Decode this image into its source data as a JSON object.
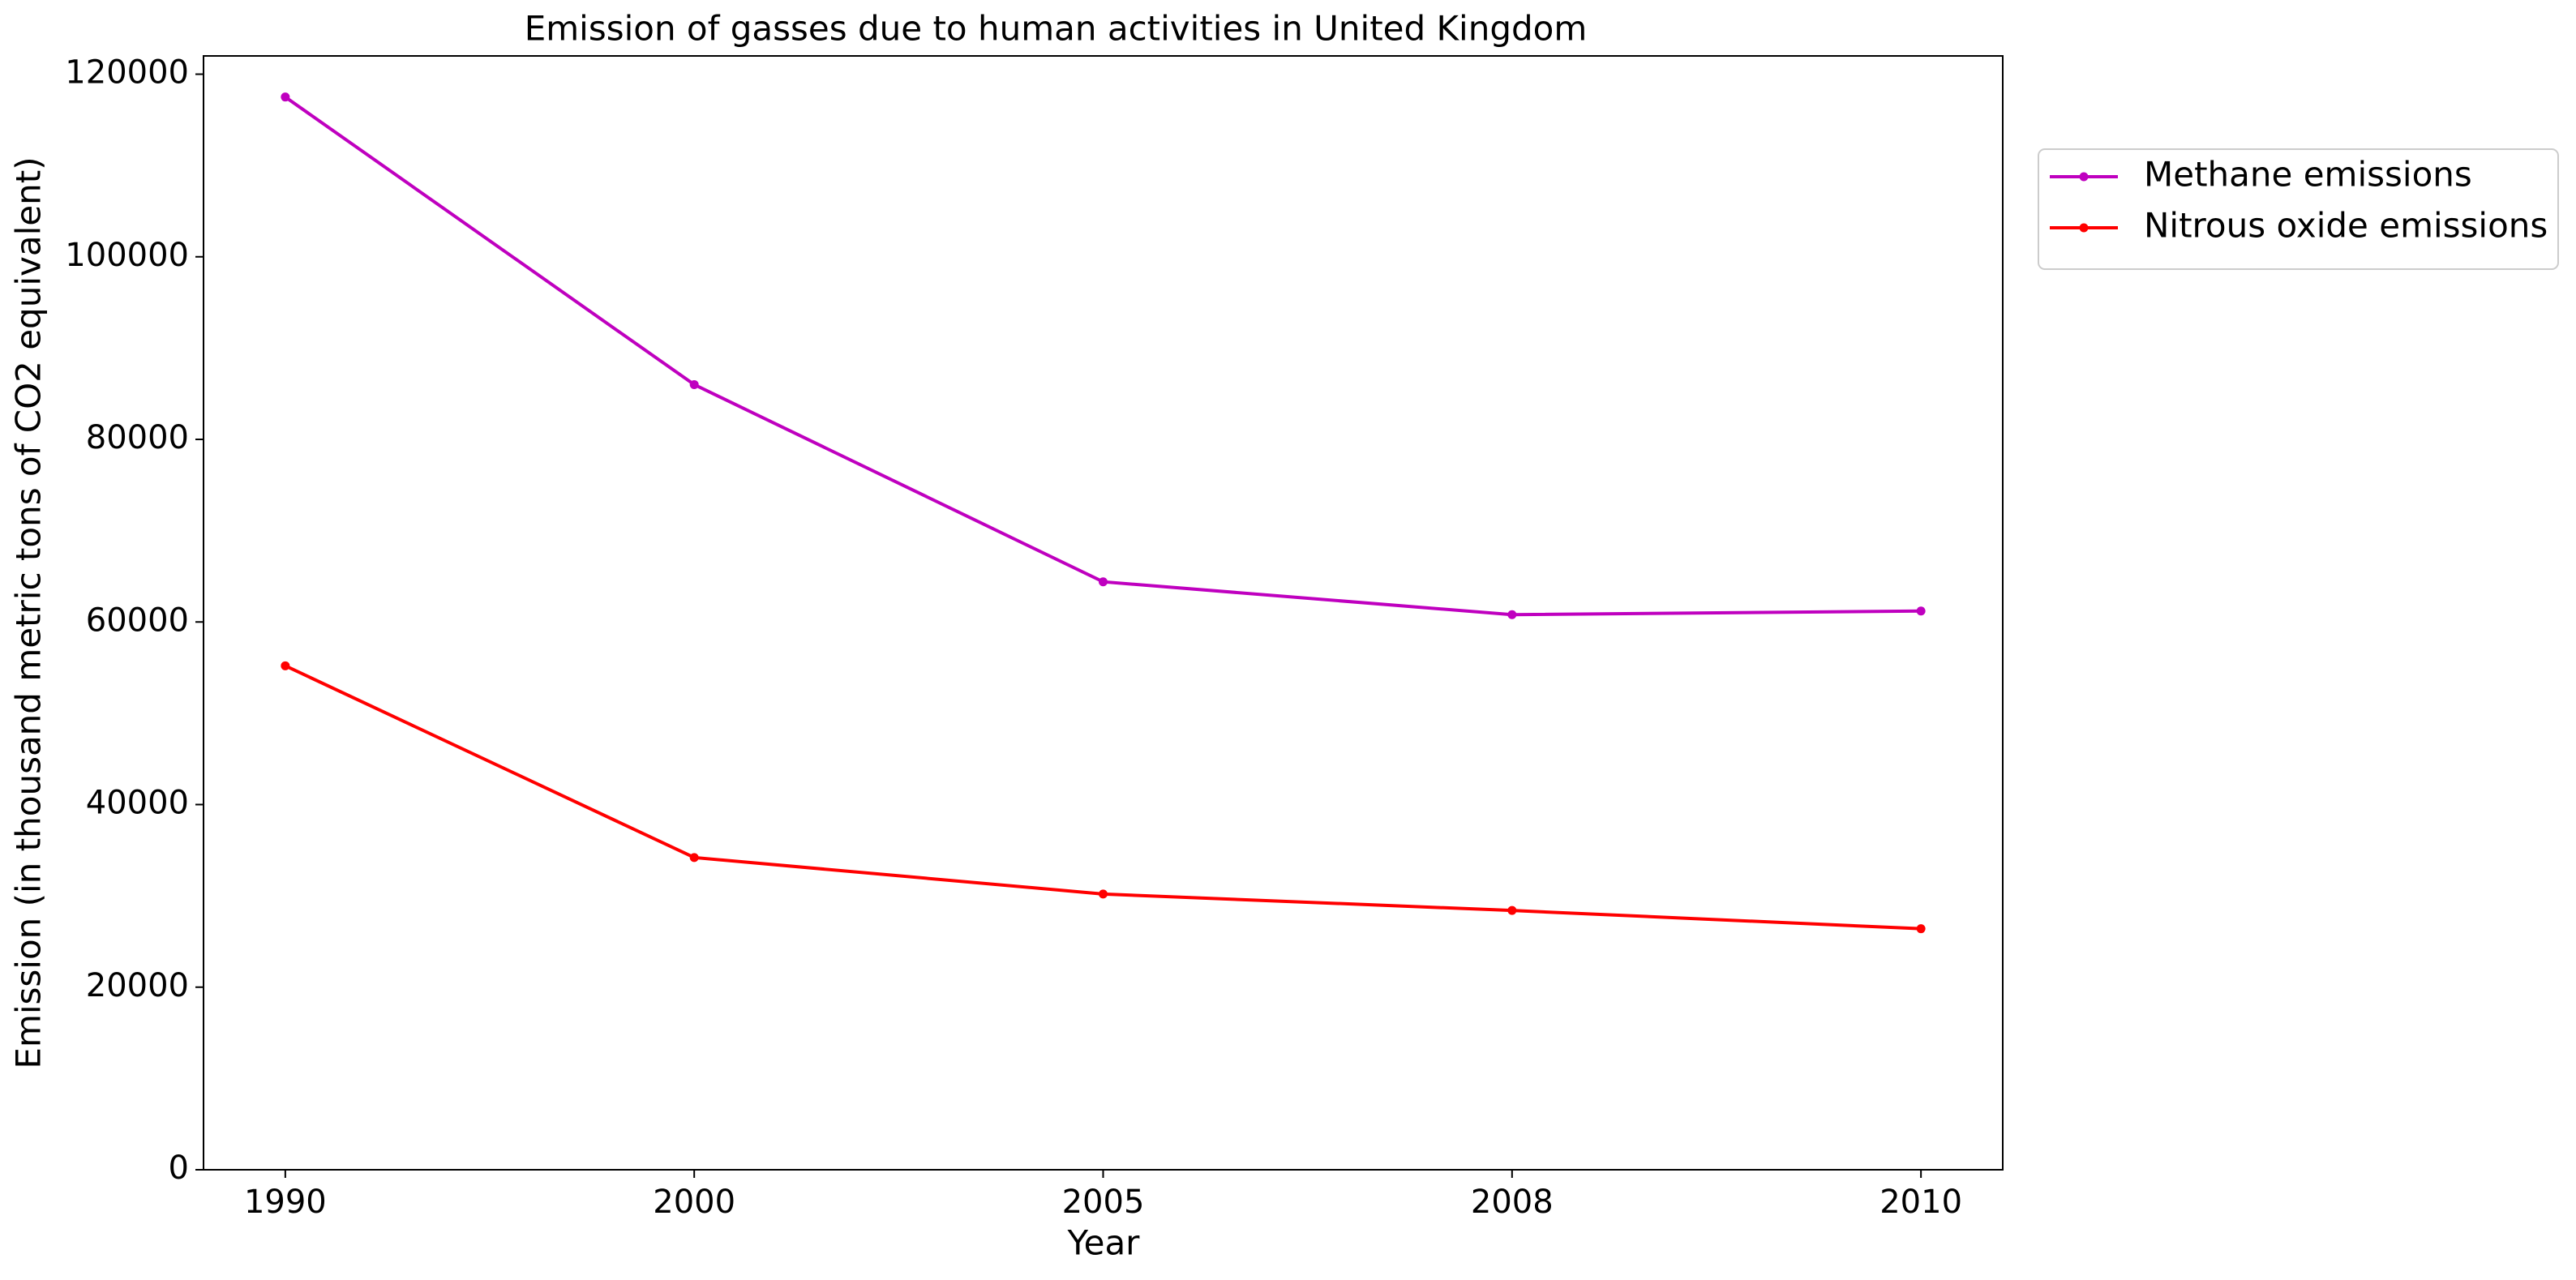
{
  "chart_data": {
    "type": "line",
    "title": "Emission of gasses due to human activities in United Kingdom",
    "x_label": "Year",
    "y_label": "Emission (in thousand metric tons of CO2 equivalent)",
    "categories": [
      "1990",
      "2000",
      "2005",
      "2008",
      "2010"
    ],
    "series": [
      {
        "name": "Methane emissions",
        "color": "#bf00bf",
        "values": [
          117500,
          86000,
          64400,
          60800,
          61200
        ]
      },
      {
        "name": "Nitrous oxide emissions",
        "color": "#ff0000",
        "values": [
          55200,
          34200,
          30200,
          28400,
          26400
        ]
      }
    ],
    "ylim": [
      0,
      122000
    ],
    "yticks": [
      0,
      20000,
      40000,
      60000,
      80000,
      100000,
      120000
    ],
    "grid": false,
    "legend": "outside-upper-right"
  }
}
